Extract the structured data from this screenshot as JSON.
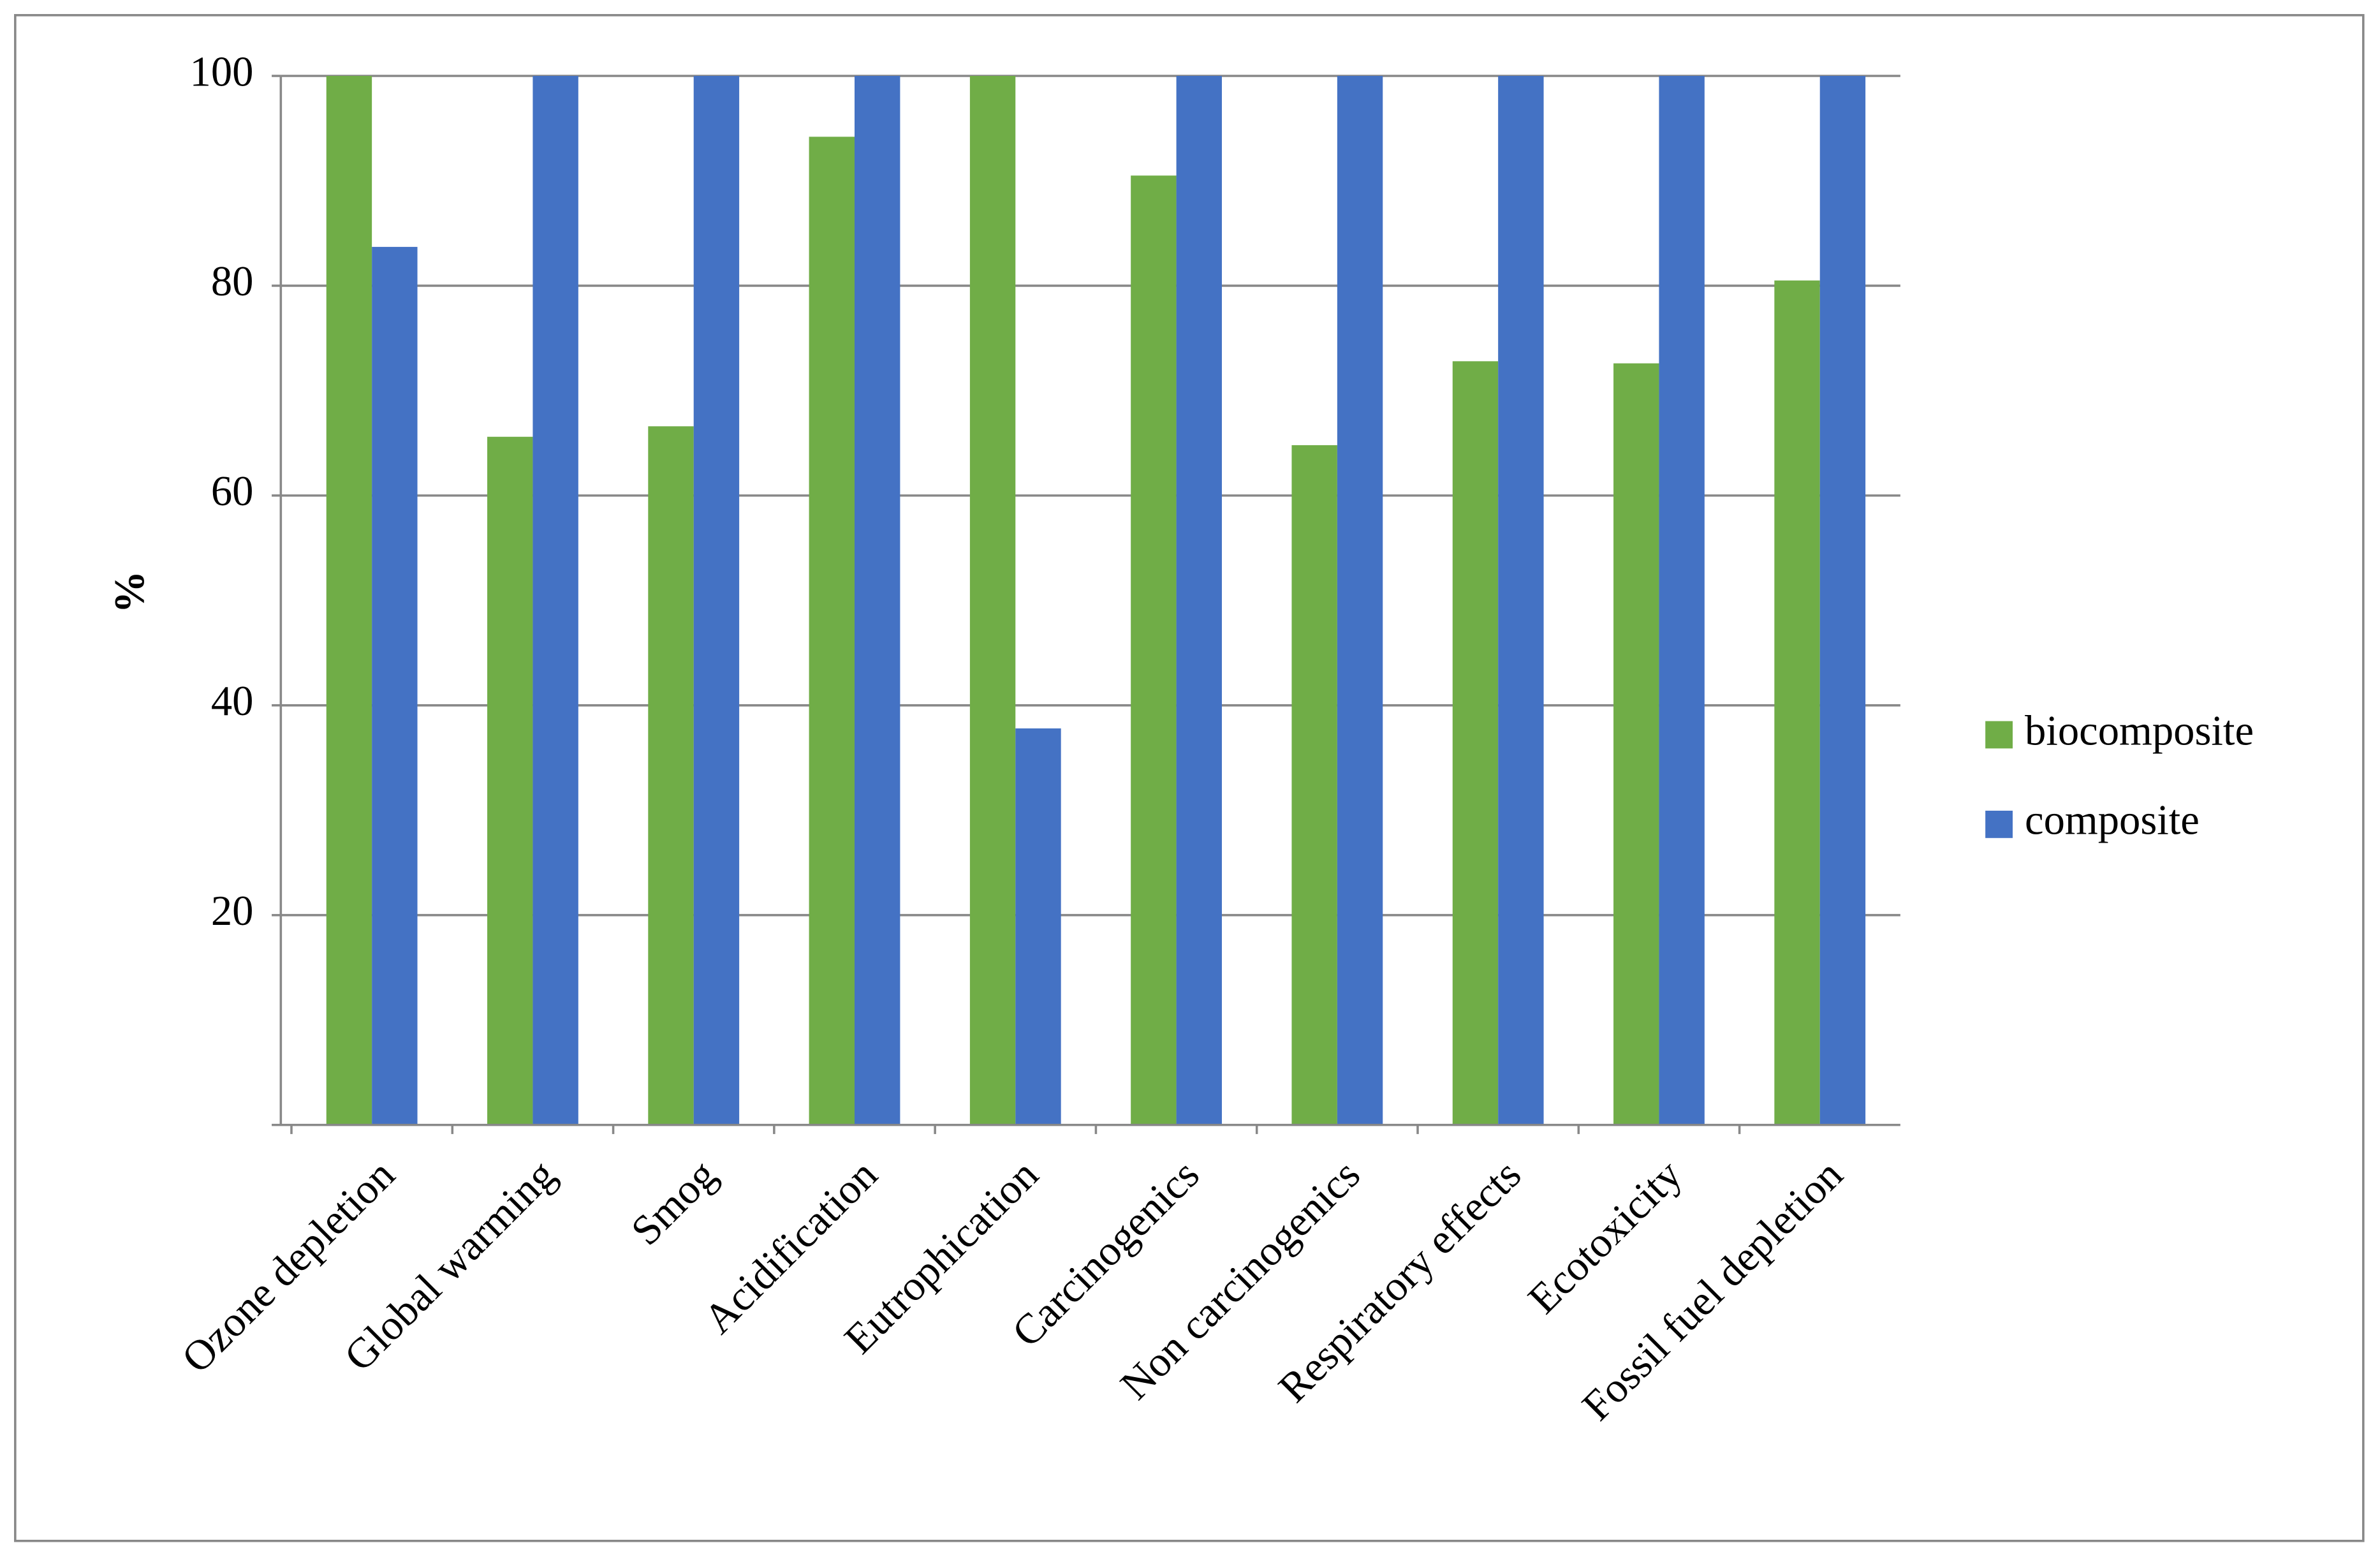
{
  "chart_data": {
    "type": "bar",
    "y_label": "%",
    "categories": [
      "Ozone depletion",
      "Global warming",
      "Smog",
      "Acidification",
      "Eutrophication",
      "Carcinogenics",
      "Non carcinogenics",
      "Respiratory effects",
      "Ecotoxicity",
      "Fossil fuel depletion"
    ],
    "series": [
      {
        "name": "biocomposite",
        "color": "#70ad47",
        "values": [
          100,
          65.6,
          66.6,
          94.2,
          100,
          90.5,
          64.8,
          72.8,
          72.6,
          80.5
        ]
      },
      {
        "name": "composite",
        "color": "#4472c4",
        "values": [
          83.7,
          100,
          100,
          100,
          37.8,
          100,
          100,
          100,
          100,
          100
        ]
      }
    ],
    "ylim": [
      0,
      100
    ],
    "yticks": [
      20,
      40,
      60,
      80,
      100
    ],
    "grid": true,
    "legend": "right"
  }
}
